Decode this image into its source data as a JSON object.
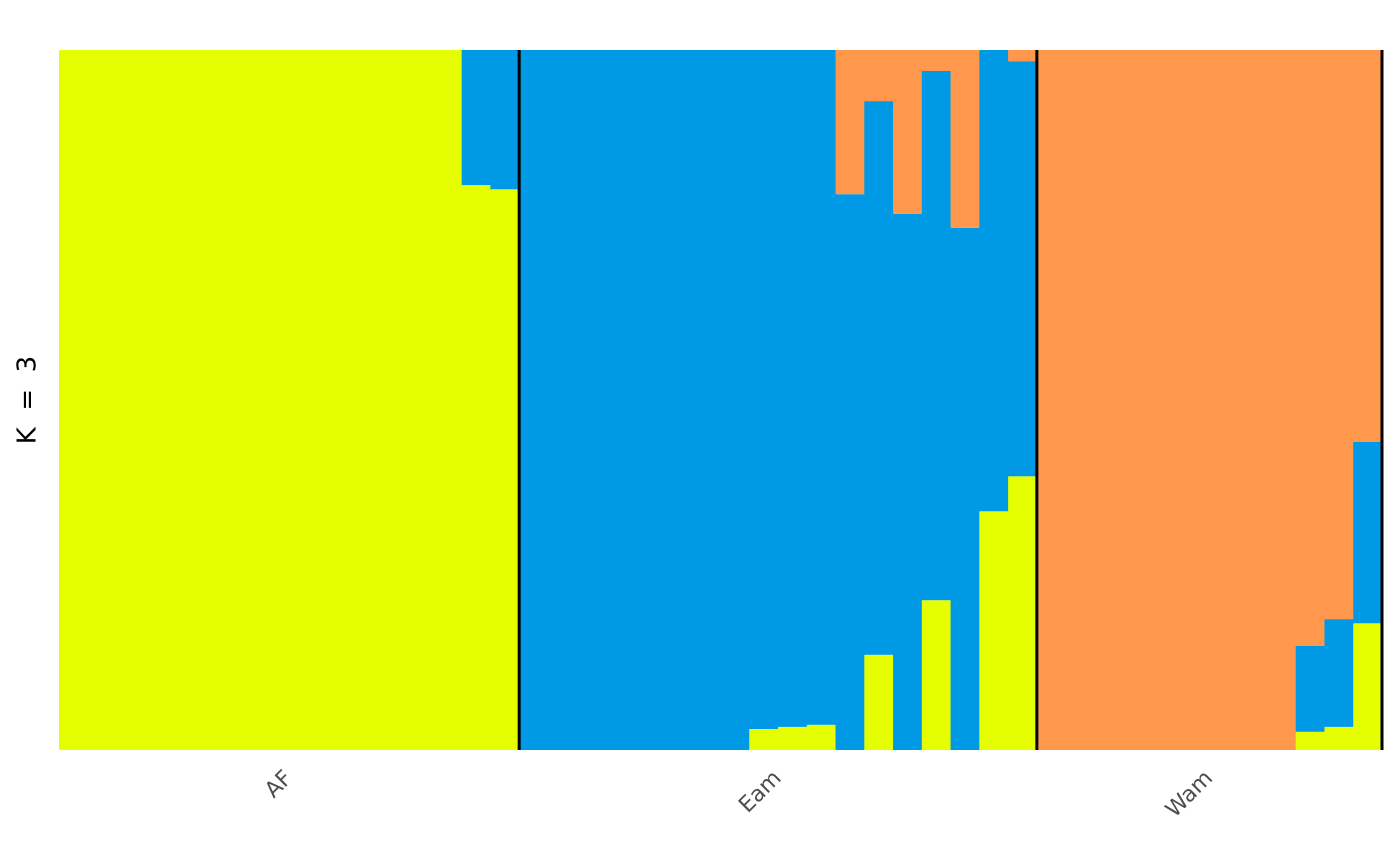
{
  "chart_data": {
    "type": "stacked-bar",
    "ylabel": "K  =  3",
    "ylim": [
      0,
      1
    ],
    "groups": [
      {
        "label": "AF",
        "count": 16
      },
      {
        "label": "Eam",
        "count": 18
      },
      {
        "label": "Wam",
        "count": 12
      }
    ],
    "categories": [
      null,
      null,
      null,
      null,
      null,
      null,
      null,
      null,
      null,
      null,
      null,
      null,
      null,
      null,
      null,
      null,
      null,
      null,
      null,
      null,
      null,
      null,
      null,
      null,
      null,
      null,
      null,
      null,
      null,
      null,
      null,
      null,
      null,
      null,
      null,
      null,
      null,
      null,
      null,
      null,
      null,
      null,
      null,
      null,
      null,
      null
    ],
    "series": [
      {
        "color": "#e5ff00",
        "values": [
          1,
          1,
          1,
          1,
          1,
          1,
          1,
          1,
          1,
          1,
          1,
          1,
          1,
          1,
          0.807,
          0.801,
          0,
          0,
          0,
          0,
          0,
          0,
          0,
          0,
          0.03,
          0.033,
          0.036,
          0,
          0.136,
          0,
          0.214,
          0,
          0.341,
          0.391,
          0,
          0,
          0,
          0,
          0,
          0,
          0,
          0,
          0,
          0.026,
          0.033,
          0.181
        ]
      },
      {
        "color": "#0099e5",
        "values": [
          0,
          0,
          0,
          0,
          0,
          0,
          0,
          0,
          0,
          0,
          0,
          0,
          0,
          0,
          0.193,
          0.199,
          1,
          1,
          1,
          1,
          1,
          1,
          1,
          1,
          0.97,
          0.967,
          0.964,
          0.794,
          0.791,
          0.766,
          0.756,
          0.746,
          0.659,
          0.593,
          0,
          0,
          0,
          0,
          0,
          0,
          0,
          0,
          0,
          0.123,
          0.154,
          0.259
        ]
      },
      {
        "color": "#ff974d",
        "values": [
          0,
          0,
          0,
          0,
          0,
          0,
          0,
          0,
          0,
          0,
          0,
          0,
          0,
          0,
          0,
          0,
          0,
          0,
          0,
          0,
          0,
          0,
          0,
          0,
          0,
          0,
          0,
          0.206,
          0.073,
          0.234,
          0.03,
          0.254,
          0,
          0.016,
          1,
          1,
          1,
          1,
          1,
          1,
          1,
          1,
          1,
          0.851,
          0.813,
          0.56
        ]
      }
    ]
  }
}
